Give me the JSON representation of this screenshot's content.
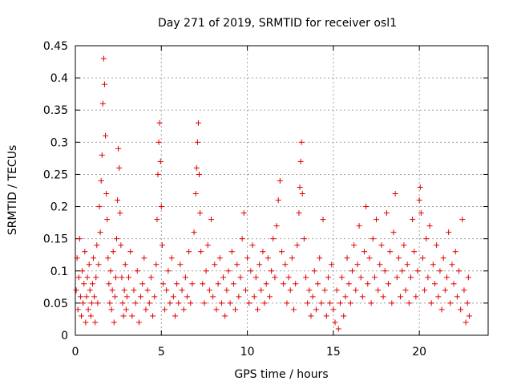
{
  "chart_data": {
    "type": "scatter",
    "title": "Day 271 of 2019, SRMTID for receiver osl1",
    "xlabel": "GPS time / hours",
    "ylabel": "SRMTID / TECUs",
    "xlim": [
      0,
      24
    ],
    "ylim": [
      0,
      0.45
    ],
    "x_ticks": [
      0,
      5,
      10,
      15,
      20
    ],
    "x_tick_labels": [
      "0",
      "5",
      "10",
      "15",
      "20"
    ],
    "y_ticks": [
      0,
      0.05,
      0.1,
      0.15,
      0.2,
      0.25,
      0.3,
      0.35,
      0.4,
      0.45
    ],
    "y_tick_labels": [
      "0",
      "0.05",
      "0.1",
      "0.15",
      "0.2",
      "0.25",
      "0.3",
      "0.35",
      "0.4",
      "0.45"
    ],
    "grid": true,
    "marker": "plus",
    "point_color": "#e00000",
    "series": [
      {
        "points": [
          [
            0.05,
            0.07
          ],
          [
            0.1,
            0.12
          ],
          [
            0.15,
            0.04
          ],
          [
            0.2,
            0.09
          ],
          [
            0.25,
            0.15
          ],
          [
            0.3,
            0.06
          ],
          [
            0.35,
            0.03
          ],
          [
            0.4,
            0.1
          ],
          [
            0.45,
            0.05
          ],
          [
            0.5,
            0.08
          ],
          [
            0.55,
            0.13
          ],
          [
            0.6,
            0.02
          ],
          [
            0.65,
            0.06
          ],
          [
            0.7,
            0.09
          ],
          [
            0.75,
            0.04
          ],
          [
            0.8,
            0.11
          ],
          [
            0.85,
            0.07
          ],
          [
            0.9,
            0.03
          ],
          [
            0.95,
            0.05
          ],
          [
            1.0,
            0.08
          ],
          [
            1.05,
            0.12
          ],
          [
            1.1,
            0.06
          ],
          [
            1.15,
            0.02
          ],
          [
            1.2,
            0.09
          ],
          [
            1.25,
            0.14
          ],
          [
            1.3,
            0.05
          ],
          [
            1.35,
            0.11
          ],
          [
            1.4,
            0.2
          ],
          [
            1.45,
            0.16
          ],
          [
            1.5,
            0.24
          ],
          [
            1.55,
            0.28
          ],
          [
            1.6,
            0.36
          ],
          [
            1.65,
            0.43
          ],
          [
            1.7,
            0.39
          ],
          [
            1.75,
            0.31
          ],
          [
            1.8,
            0.22
          ],
          [
            1.85,
            0.18
          ],
          [
            1.9,
            0.12
          ],
          [
            1.95,
            0.08
          ],
          [
            2.0,
            0.05
          ],
          [
            2.05,
            0.1
          ],
          [
            2.1,
            0.04
          ],
          [
            2.15,
            0.07
          ],
          [
            2.2,
            0.13
          ],
          [
            2.25,
            0.02
          ],
          [
            2.3,
            0.06
          ],
          [
            2.35,
            0.09
          ],
          [
            2.4,
            0.15
          ],
          [
            2.45,
            0.21
          ],
          [
            2.5,
            0.29
          ],
          [
            2.55,
            0.26
          ],
          [
            2.6,
            0.19
          ],
          [
            2.65,
            0.14
          ],
          [
            2.7,
            0.09
          ],
          [
            2.75,
            0.05
          ],
          [
            2.8,
            0.03
          ],
          [
            2.85,
            0.07
          ],
          [
            2.9,
            0.11
          ],
          [
            2.95,
            0.04
          ],
          [
            3.0,
            0.06
          ],
          [
            3.1,
            0.09
          ],
          [
            3.2,
            0.13
          ],
          [
            3.3,
            0.03
          ],
          [
            3.4,
            0.07
          ],
          [
            3.5,
            0.05
          ],
          [
            3.6,
            0.1
          ],
          [
            3.7,
            0.02
          ],
          [
            3.8,
            0.06
          ],
          [
            3.9,
            0.08
          ],
          [
            4.0,
            0.12
          ],
          [
            4.1,
            0.04
          ],
          [
            4.2,
            0.07
          ],
          [
            4.3,
            0.05
          ],
          [
            4.4,
            0.09
          ],
          [
            4.5,
            0.03
          ],
          [
            4.6,
            0.06
          ],
          [
            4.7,
            0.11
          ],
          [
            4.75,
            0.18
          ],
          [
            4.8,
            0.25
          ],
          [
            4.85,
            0.3
          ],
          [
            4.9,
            0.33
          ],
          [
            4.95,
            0.27
          ],
          [
            5.0,
            0.2
          ],
          [
            5.05,
            0.14
          ],
          [
            5.1,
            0.08
          ],
          [
            5.2,
            0.04
          ],
          [
            5.3,
            0.07
          ],
          [
            5.4,
            0.1
          ],
          [
            5.5,
            0.05
          ],
          [
            5.6,
            0.12
          ],
          [
            5.7,
            0.06
          ],
          [
            5.8,
            0.03
          ],
          [
            5.9,
            0.08
          ],
          [
            6.0,
            0.05
          ],
          [
            6.1,
            0.11
          ],
          [
            6.2,
            0.07
          ],
          [
            6.3,
            0.04
          ],
          [
            6.4,
            0.09
          ],
          [
            6.5,
            0.06
          ],
          [
            6.6,
            0.13
          ],
          [
            6.7,
            0.05
          ],
          [
            6.8,
            0.08
          ],
          [
            6.9,
            0.16
          ],
          [
            7.0,
            0.22
          ],
          [
            7.05,
            0.26
          ],
          [
            7.1,
            0.3
          ],
          [
            7.15,
            0.33
          ],
          [
            7.2,
            0.25
          ],
          [
            7.25,
            0.19
          ],
          [
            7.3,
            0.13
          ],
          [
            7.4,
            0.08
          ],
          [
            7.5,
            0.05
          ],
          [
            7.6,
            0.1
          ],
          [
            7.7,
            0.14
          ],
          [
            7.8,
            0.07
          ],
          [
            7.9,
            0.18
          ],
          [
            8.0,
            0.06
          ],
          [
            8.1,
            0.11
          ],
          [
            8.2,
            0.04
          ],
          [
            8.3,
            0.08
          ],
          [
            8.4,
            0.12
          ],
          [
            8.5,
            0.05
          ],
          [
            8.6,
            0.09
          ],
          [
            8.7,
            0.03
          ],
          [
            8.8,
            0.07
          ],
          [
            8.9,
            0.1
          ],
          [
            9.0,
            0.05
          ],
          [
            9.1,
            0.13
          ],
          [
            9.2,
            0.08
          ],
          [
            9.3,
            0.04
          ],
          [
            9.4,
            0.11
          ],
          [
            9.5,
            0.06
          ],
          [
            9.6,
            0.09
          ],
          [
            9.7,
            0.15
          ],
          [
            9.8,
            0.19
          ],
          [
            9.9,
            0.07
          ],
          [
            10.0,
            0.12
          ],
          [
            10.1,
            0.05
          ],
          [
            10.2,
            0.1
          ],
          [
            10.3,
            0.14
          ],
          [
            10.4,
            0.06
          ],
          [
            10.5,
            0.09
          ],
          [
            10.6,
            0.04
          ],
          [
            10.7,
            0.11
          ],
          [
            10.8,
            0.07
          ],
          [
            10.9,
            0.13
          ],
          [
            11.0,
            0.05
          ],
          [
            11.1,
            0.08
          ],
          [
            11.2,
            0.12
          ],
          [
            11.3,
            0.06
          ],
          [
            11.4,
            0.1
          ],
          [
            11.5,
            0.15
          ],
          [
            11.6,
            0.09
          ],
          [
            11.7,
            0.17
          ],
          [
            11.8,
            0.21
          ],
          [
            11.9,
            0.24
          ],
          [
            12.0,
            0.13
          ],
          [
            12.1,
            0.08
          ],
          [
            12.2,
            0.11
          ],
          [
            12.3,
            0.05
          ],
          [
            12.4,
            0.09
          ],
          [
            12.5,
            0.07
          ],
          [
            12.6,
            0.12
          ],
          [
            12.7,
            0.04
          ],
          [
            12.8,
            0.08
          ],
          [
            12.9,
            0.14
          ],
          [
            13.0,
            0.19
          ],
          [
            13.05,
            0.23
          ],
          [
            13.1,
            0.27
          ],
          [
            13.15,
            0.3
          ],
          [
            13.2,
            0.22
          ],
          [
            13.3,
            0.15
          ],
          [
            13.4,
            0.09
          ],
          [
            13.5,
            0.05
          ],
          [
            13.6,
            0.07
          ],
          [
            13.7,
            0.03
          ],
          [
            13.8,
            0.06
          ],
          [
            13.9,
            0.1
          ],
          [
            14.0,
            0.04
          ],
          [
            14.1,
            0.08
          ],
          [
            14.2,
            0.12
          ],
          [
            14.3,
            0.05
          ],
          [
            14.4,
            0.18
          ],
          [
            14.5,
            0.07
          ],
          [
            14.6,
            0.03
          ],
          [
            14.7,
            0.09
          ],
          [
            14.8,
            0.05
          ],
          [
            14.9,
            0.11
          ],
          [
            15.0,
            0.04
          ],
          [
            15.1,
            0.02
          ],
          [
            15.2,
            0.07
          ],
          [
            15.3,
            0.01
          ],
          [
            15.4,
            0.05
          ],
          [
            15.5,
            0.09
          ],
          [
            15.6,
            0.03
          ],
          [
            15.7,
            0.06
          ],
          [
            15.8,
            0.12
          ],
          [
            15.9,
            0.08
          ],
          [
            16.0,
            0.05
          ],
          [
            16.1,
            0.1
          ],
          [
            16.2,
            0.14
          ],
          [
            16.3,
            0.07
          ],
          [
            16.4,
            0.11
          ],
          [
            16.5,
            0.17
          ],
          [
            16.6,
            0.09
          ],
          [
            16.7,
            0.06
          ],
          [
            16.8,
            0.13
          ],
          [
            16.9,
            0.2
          ],
          [
            17.0,
            0.08
          ],
          [
            17.1,
            0.12
          ],
          [
            17.2,
            0.05
          ],
          [
            17.3,
            0.15
          ],
          [
            17.4,
            0.09
          ],
          [
            17.5,
            0.18
          ],
          [
            17.6,
            0.07
          ],
          [
            17.7,
            0.11
          ],
          [
            17.8,
            0.14
          ],
          [
            17.9,
            0.06
          ],
          [
            18.0,
            0.1
          ],
          [
            18.1,
            0.19
          ],
          [
            18.2,
            0.08
          ],
          [
            18.3,
            0.13
          ],
          [
            18.4,
            0.05
          ],
          [
            18.5,
            0.16
          ],
          [
            18.6,
            0.22
          ],
          [
            18.7,
            0.09
          ],
          [
            18.8,
            0.12
          ],
          [
            18.9,
            0.06
          ],
          [
            19.0,
            0.1
          ],
          [
            19.1,
            0.14
          ],
          [
            19.2,
            0.07
          ],
          [
            19.3,
            0.11
          ],
          [
            19.4,
            0.05
          ],
          [
            19.5,
            0.09
          ],
          [
            19.6,
            0.18
          ],
          [
            19.7,
            0.13
          ],
          [
            19.8,
            0.06
          ],
          [
            19.9,
            0.1
          ],
          [
            20.0,
            0.21
          ],
          [
            20.05,
            0.23
          ],
          [
            20.1,
            0.19
          ],
          [
            20.2,
            0.12
          ],
          [
            20.3,
            0.07
          ],
          [
            20.4,
            0.15
          ],
          [
            20.5,
            0.09
          ],
          [
            20.6,
            0.17
          ],
          [
            20.7,
            0.05
          ],
          [
            20.8,
            0.11
          ],
          [
            20.9,
            0.08
          ],
          [
            21.0,
            0.14
          ],
          [
            21.1,
            0.06
          ],
          [
            21.2,
            0.1
          ],
          [
            21.3,
            0.04
          ],
          [
            21.4,
            0.12
          ],
          [
            21.5,
            0.07
          ],
          [
            21.6,
            0.09
          ],
          [
            21.7,
            0.16
          ],
          [
            21.8,
            0.05
          ],
          [
            21.9,
            0.11
          ],
          [
            22.0,
            0.08
          ],
          [
            22.1,
            0.13
          ],
          [
            22.2,
            0.06
          ],
          [
            22.3,
            0.1
          ],
          [
            22.4,
            0.04
          ],
          [
            22.5,
            0.18
          ],
          [
            22.6,
            0.07
          ],
          [
            22.7,
            0.02
          ],
          [
            22.8,
            0.05
          ],
          [
            22.85,
            0.09
          ],
          [
            22.9,
            0.03
          ]
        ]
      }
    ]
  }
}
